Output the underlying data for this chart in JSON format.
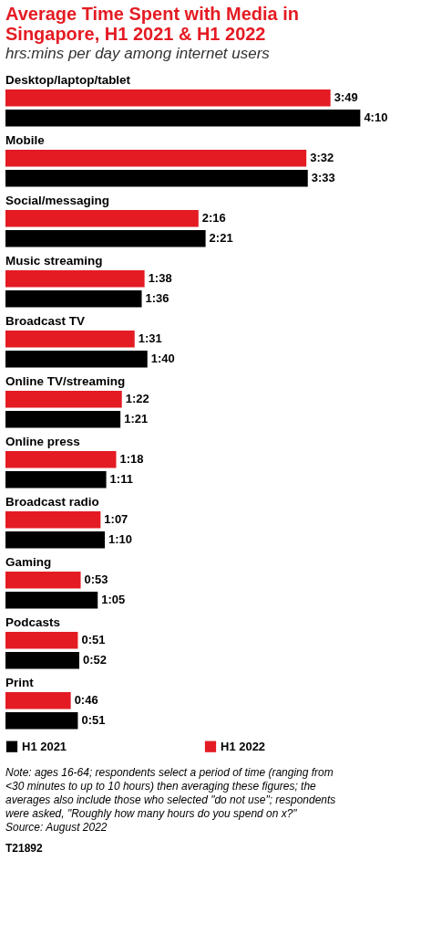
{
  "chart_data": {
    "type": "bar",
    "orientation": "horizontal",
    "title": "Average Time Spent with Media in Singapore, H1 2021 & H1 2022",
    "subtitle": "hrs:mins per day among internet users",
    "categories": [
      "Desktop/laptop/tablet",
      "Mobile",
      "Social/messaging",
      "Music streaming",
      "Broadcast TV",
      "Online TV/streaming",
      "Online press",
      "Broadcast radio",
      "Gaming",
      "Podcasts",
      "Print"
    ],
    "series": [
      {
        "name": "H1 2021",
        "color": "#000000",
        "values": [
          250,
          213,
          141,
          96,
          100,
          81,
          71,
          70,
          65,
          52,
          51
        ],
        "value_labels": [
          "4:10",
          "3:33",
          "2:21",
          "1:36",
          "1:40",
          "1:21",
          "1:11",
          "1:10",
          "1:05",
          "0:52",
          "0:51"
        ]
      },
      {
        "name": "H1 2022",
        "color": "#e41b23",
        "values": [
          229,
          212,
          136,
          98,
          91,
          82,
          78,
          67,
          53,
          51,
          46
        ],
        "value_labels": [
          "3:49",
          "3:32",
          "2:16",
          "1:38",
          "1:31",
          "1:22",
          "1:18",
          "1:07",
          "0:53",
          "0:51",
          "0:46"
        ]
      }
    ],
    "legend": "bottom",
    "annotations": [
      "Note: ages 16-64; respondents select a period of time (ranging from <30 minutes to up to 10 hours) then averaging these figures; the averages also include those who selected \"do not use\"; respondents were asked, \"Roughly how many hours do you spend on x?\"",
      "Source: August 2022",
      "T21892"
    ]
  }
}
